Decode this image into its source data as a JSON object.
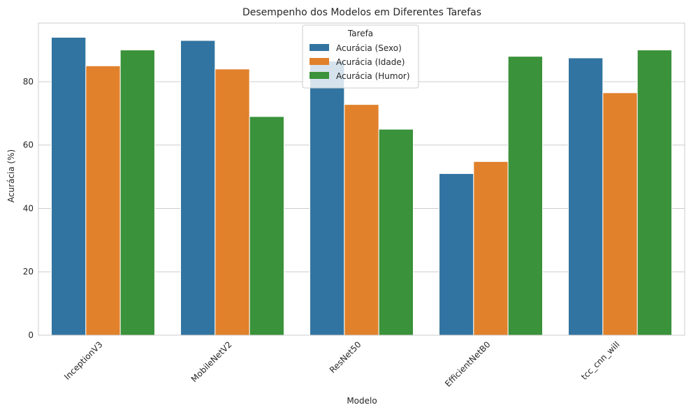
{
  "chart_data": {
    "type": "bar",
    "title": "Desempenho dos Modelos em Diferentes Tarefas",
    "xlabel": "Modelo",
    "ylabel": "Acurácia (%)",
    "categories": [
      "InceptionV3",
      "MobileNetV2",
      "ResNet50",
      "EfficientNetB0",
      "tcc_cnn_will"
    ],
    "series": [
      {
        "name": "Acurácia (Sexo)",
        "color": "#3274a1",
        "values": [
          94.0,
          93.0,
          86.5,
          51.0,
          87.5
        ]
      },
      {
        "name": "Acurácia (Idade)",
        "color": "#e1812c",
        "values": [
          85.0,
          84.0,
          72.8,
          54.8,
          76.5
        ]
      },
      {
        "name": "Acurácia (Humor)",
        "color": "#3a923a",
        "values": [
          90.0,
          69.0,
          65.0,
          88.0,
          90.0
        ]
      }
    ],
    "ylim": [
      0,
      98.5
    ],
    "yticks": [
      0,
      20,
      40,
      60,
      80
    ],
    "grid": true,
    "legend": {
      "title": "Tarefa",
      "placement": "upper-center"
    }
  }
}
